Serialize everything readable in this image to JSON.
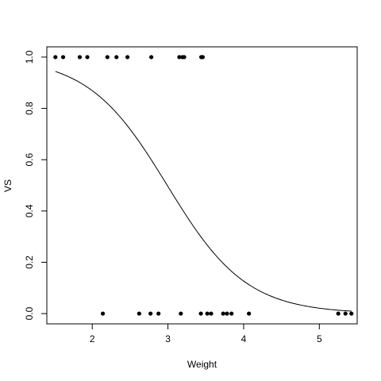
{
  "chart_data": {
    "type": "scatter",
    "title": "",
    "xlabel": "Weight",
    "ylabel": "VS",
    "xlim": [
      1.4,
      5.5
    ],
    "ylim": [
      -0.04,
      1.04
    ],
    "grid": false,
    "x_ticks": [
      2,
      3,
      4,
      5
    ],
    "x_tick_labels": [
      "2",
      "3",
      "4",
      "5"
    ],
    "y_ticks": [
      0.0,
      0.2,
      0.4,
      0.6,
      0.8,
      1.0
    ],
    "y_tick_labels": [
      "0.0",
      "0.2",
      "0.4",
      "0.6",
      "0.8",
      "1.0"
    ],
    "points": [
      {
        "x": 1.513,
        "y": 1
      },
      {
        "x": 1.615,
        "y": 1
      },
      {
        "x": 1.835,
        "y": 1
      },
      {
        "x": 1.935,
        "y": 1
      },
      {
        "x": 2.2,
        "y": 1
      },
      {
        "x": 2.32,
        "y": 1
      },
      {
        "x": 2.465,
        "y": 1
      },
      {
        "x": 2.78,
        "y": 1
      },
      {
        "x": 3.15,
        "y": 1
      },
      {
        "x": 3.19,
        "y": 1
      },
      {
        "x": 3.215,
        "y": 1
      },
      {
        "x": 3.44,
        "y": 1
      },
      {
        "x": 3.46,
        "y": 1
      },
      {
        "x": 2.14,
        "y": 0
      },
      {
        "x": 2.62,
        "y": 0
      },
      {
        "x": 2.77,
        "y": 0
      },
      {
        "x": 2.875,
        "y": 0
      },
      {
        "x": 3.17,
        "y": 0
      },
      {
        "x": 3.435,
        "y": 0
      },
      {
        "x": 3.52,
        "y": 0
      },
      {
        "x": 3.57,
        "y": 0
      },
      {
        "x": 3.73,
        "y": 0
      },
      {
        "x": 3.78,
        "y": 0
      },
      {
        "x": 3.84,
        "y": 0
      },
      {
        "x": 4.07,
        "y": 0
      },
      {
        "x": 5.25,
        "y": 0
      },
      {
        "x": 5.345,
        "y": 0
      },
      {
        "x": 5.424,
        "y": 0
      }
    ],
    "fit_curve": {
      "type": "logistic",
      "intercept": 5.715,
      "slope": -1.911,
      "x_range": [
        1.513,
        5.424
      ]
    }
  }
}
